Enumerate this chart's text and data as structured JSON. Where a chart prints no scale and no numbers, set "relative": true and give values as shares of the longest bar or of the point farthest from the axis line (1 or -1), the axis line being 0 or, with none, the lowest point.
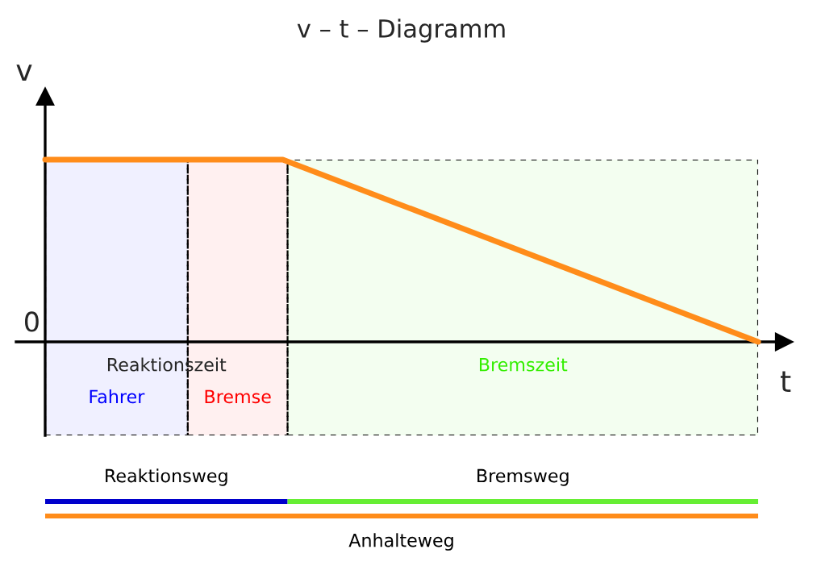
{
  "chart_data": [
    {
      "type": "line",
      "title": "v – t – Diagramm",
      "xlabel": "t",
      "ylabel": "v",
      "relative": true,
      "categories": [
        null,
        null,
        null,
        null
      ],
      "series": [
        {
          "color": "#ff8c1a",
          "values": [
            1,
            1,
            0.5,
            0
          ]
        }
      ],
      "annotations": [
        "0"
      ]
    },
    {
      "type": "bar",
      "orientation": "horizontal",
      "stacked": true,
      "relative": true,
      "categories": [
        null
      ],
      "series": [
        {
          "name": "Fahrer",
          "color": "#0000ff",
          "values": [
            0.2
          ]
        },
        {
          "name": "Bremse",
          "color": "#ff0000",
          "values": [
            0.14
          ]
        },
        {
          "name": "Bremszeit",
          "color": "#33ee00",
          "values": [
            0.66
          ]
        }
      ],
      "annotations": [
        "Reaktionszeit"
      ]
    },
    {
      "type": "bar",
      "orientation": "horizontal",
      "stacked": true,
      "relative": true,
      "categories": [
        null,
        null
      ],
      "series": [
        {
          "name": "Reaktionsweg",
          "color": "#0000cc",
          "values": [
            0.34,
            null
          ]
        },
        {
          "name": "Bremsweg",
          "color": "#66ee33",
          "values": [
            0.66,
            null
          ]
        },
        {
          "name": "Anhalteweg",
          "color": "#ff8c1a",
          "values": [
            null,
            1
          ]
        }
      ]
    }
  ]
}
